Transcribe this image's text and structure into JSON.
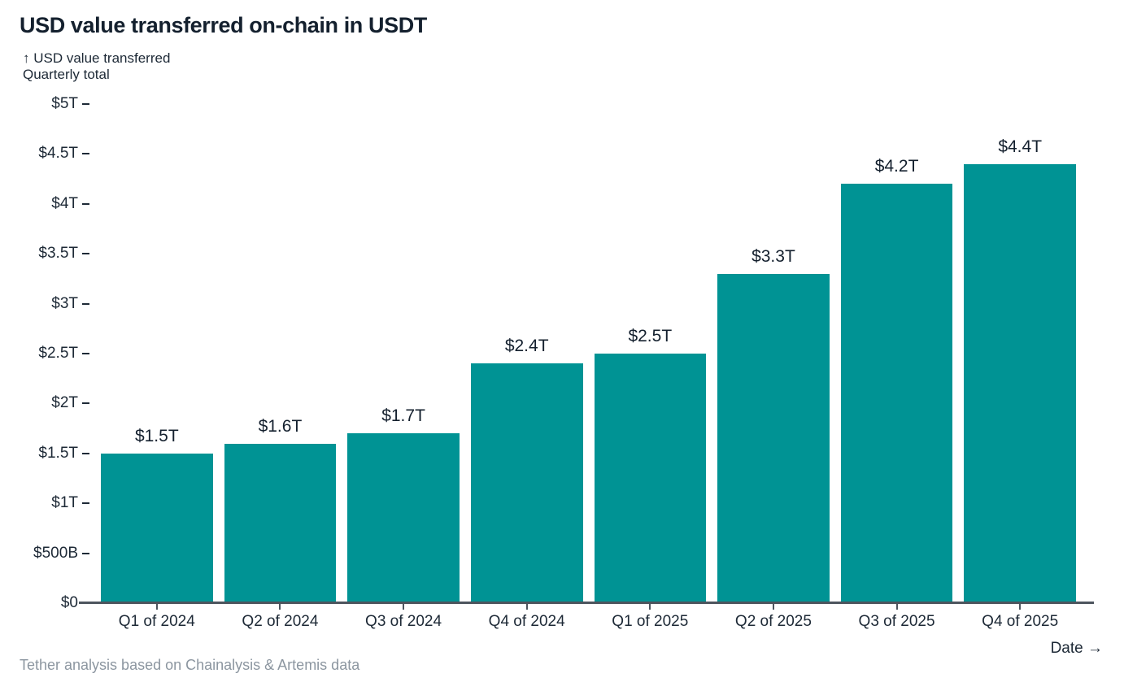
{
  "title": "USD value transferred on-chain in USDT",
  "subtitle_line1": "↑ USD value transferred",
  "subtitle_line2": "Quarterly total",
  "x_axis_caption": "Date →",
  "footer": "Tether analysis based on Chainalysis & Artemis data",
  "colors": {
    "bar": "#009394",
    "heading": "#14202e",
    "text": "#1d2936",
    "muted": "#8c96a0",
    "axis_line": "#4d555e"
  },
  "chart_data": {
    "type": "bar",
    "title": "USD value transferred on-chain in USDT",
    "categories": [
      "Q1 of 2024",
      "Q2 of 2024",
      "Q3 of 2024",
      "Q4 of 2024",
      "Q1 of 2025",
      "Q2 of 2025",
      "Q3 of 2025",
      "Q4 of 2025"
    ],
    "values": [
      1.5,
      1.6,
      1.7,
      2.4,
      2.5,
      3.3,
      4.2,
      4.4
    ],
    "value_labels": [
      "$1.5T",
      "$1.6T",
      "$1.7T",
      "$2.4T",
      "$2.5T",
      "$3.3T",
      "$4.2T",
      "$4.4T"
    ],
    "unit": "trillions of USD",
    "xlabel": "Date",
    "ylabel": "USD value transferred",
    "ylim": [
      0,
      5
    ],
    "grid": false,
    "legend": null,
    "y_ticks": [
      {
        "label": "$0",
        "value": 0
      },
      {
        "label": "$500B",
        "value": 0.5
      },
      {
        "label": "$1T",
        "value": 1
      },
      {
        "label": "$1.5T",
        "value": 1.5
      },
      {
        "label": "$2T",
        "value": 2
      },
      {
        "label": "$2.5T",
        "value": 2.5
      },
      {
        "label": "$3T",
        "value": 3
      },
      {
        "label": "$3.5T",
        "value": 3.5
      },
      {
        "label": "$4T",
        "value": 4
      },
      {
        "label": "$4.5T",
        "value": 4.5
      },
      {
        "label": "$5T",
        "value": 5
      }
    ]
  }
}
